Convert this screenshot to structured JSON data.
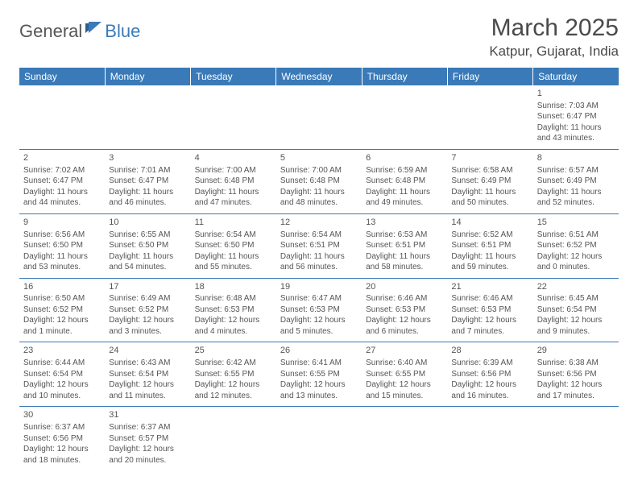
{
  "logo": {
    "general": "General",
    "blue": "Blue"
  },
  "title": "March 2025",
  "location": "Katpur, Gujarat, India",
  "colors": {
    "header_bg": "#3a7ab8",
    "header_text": "#ffffff",
    "border": "#3a7ab8",
    "text": "#555555",
    "page_bg": "#ffffff"
  },
  "weekdays": [
    "Sunday",
    "Monday",
    "Tuesday",
    "Wednesday",
    "Thursday",
    "Friday",
    "Saturday"
  ],
  "grid": {
    "columns": 7,
    "rows": 6,
    "first_day_column": 6,
    "days_in_month": 31
  },
  "days": {
    "1": {
      "sunrise": "7:03 AM",
      "sunset": "6:47 PM",
      "daylight": "11 hours and 43 minutes."
    },
    "2": {
      "sunrise": "7:02 AM",
      "sunset": "6:47 PM",
      "daylight": "11 hours and 44 minutes."
    },
    "3": {
      "sunrise": "7:01 AM",
      "sunset": "6:47 PM",
      "daylight": "11 hours and 46 minutes."
    },
    "4": {
      "sunrise": "7:00 AM",
      "sunset": "6:48 PM",
      "daylight": "11 hours and 47 minutes."
    },
    "5": {
      "sunrise": "7:00 AM",
      "sunset": "6:48 PM",
      "daylight": "11 hours and 48 minutes."
    },
    "6": {
      "sunrise": "6:59 AM",
      "sunset": "6:48 PM",
      "daylight": "11 hours and 49 minutes."
    },
    "7": {
      "sunrise": "6:58 AM",
      "sunset": "6:49 PM",
      "daylight": "11 hours and 50 minutes."
    },
    "8": {
      "sunrise": "6:57 AM",
      "sunset": "6:49 PM",
      "daylight": "11 hours and 52 minutes."
    },
    "9": {
      "sunrise": "6:56 AM",
      "sunset": "6:50 PM",
      "daylight": "11 hours and 53 minutes."
    },
    "10": {
      "sunrise": "6:55 AM",
      "sunset": "6:50 PM",
      "daylight": "11 hours and 54 minutes."
    },
    "11": {
      "sunrise": "6:54 AM",
      "sunset": "6:50 PM",
      "daylight": "11 hours and 55 minutes."
    },
    "12": {
      "sunrise": "6:54 AM",
      "sunset": "6:51 PM",
      "daylight": "11 hours and 56 minutes."
    },
    "13": {
      "sunrise": "6:53 AM",
      "sunset": "6:51 PM",
      "daylight": "11 hours and 58 minutes."
    },
    "14": {
      "sunrise": "6:52 AM",
      "sunset": "6:51 PM",
      "daylight": "11 hours and 59 minutes."
    },
    "15": {
      "sunrise": "6:51 AM",
      "sunset": "6:52 PM",
      "daylight": "12 hours and 0 minutes."
    },
    "16": {
      "sunrise": "6:50 AM",
      "sunset": "6:52 PM",
      "daylight": "12 hours and 1 minute."
    },
    "17": {
      "sunrise": "6:49 AM",
      "sunset": "6:52 PM",
      "daylight": "12 hours and 3 minutes."
    },
    "18": {
      "sunrise": "6:48 AM",
      "sunset": "6:53 PM",
      "daylight": "12 hours and 4 minutes."
    },
    "19": {
      "sunrise": "6:47 AM",
      "sunset": "6:53 PM",
      "daylight": "12 hours and 5 minutes."
    },
    "20": {
      "sunrise": "6:46 AM",
      "sunset": "6:53 PM",
      "daylight": "12 hours and 6 minutes."
    },
    "21": {
      "sunrise": "6:46 AM",
      "sunset": "6:53 PM",
      "daylight": "12 hours and 7 minutes."
    },
    "22": {
      "sunrise": "6:45 AM",
      "sunset": "6:54 PM",
      "daylight": "12 hours and 9 minutes."
    },
    "23": {
      "sunrise": "6:44 AM",
      "sunset": "6:54 PM",
      "daylight": "12 hours and 10 minutes."
    },
    "24": {
      "sunrise": "6:43 AM",
      "sunset": "6:54 PM",
      "daylight": "12 hours and 11 minutes."
    },
    "25": {
      "sunrise": "6:42 AM",
      "sunset": "6:55 PM",
      "daylight": "12 hours and 12 minutes."
    },
    "26": {
      "sunrise": "6:41 AM",
      "sunset": "6:55 PM",
      "daylight": "12 hours and 13 minutes."
    },
    "27": {
      "sunrise": "6:40 AM",
      "sunset": "6:55 PM",
      "daylight": "12 hours and 15 minutes."
    },
    "28": {
      "sunrise": "6:39 AM",
      "sunset": "6:56 PM",
      "daylight": "12 hours and 16 minutes."
    },
    "29": {
      "sunrise": "6:38 AM",
      "sunset": "6:56 PM",
      "daylight": "12 hours and 17 minutes."
    },
    "30": {
      "sunrise": "6:37 AM",
      "sunset": "6:56 PM",
      "daylight": "12 hours and 18 minutes."
    },
    "31": {
      "sunrise": "6:37 AM",
      "sunset": "6:57 PM",
      "daylight": "12 hours and 20 minutes."
    }
  },
  "labels": {
    "sunrise_prefix": "Sunrise: ",
    "sunset_prefix": "Sunset: ",
    "daylight_prefix": "Daylight: "
  }
}
